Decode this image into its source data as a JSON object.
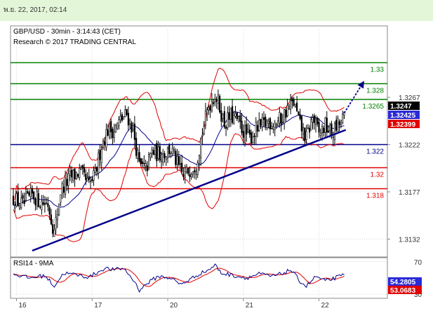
{
  "timestamp": "พ.ย. 22, 2017, 02:14",
  "chart_data": [
    {
      "type": "candlestick",
      "title": "GBP/USD - 30min - 3:14:43 (CET)",
      "subtitle": "Research © 2017 TRADING CENTRAL",
      "ylim": [
        1.3115,
        1.3335
      ],
      "y_ticks": [
        {
          "value": 1.3267,
          "label": "1.3267"
        },
        {
          "value": 1.3222,
          "label": "1.3222"
        },
        {
          "value": 1.3177,
          "label": "1.3177"
        },
        {
          "value": 1.3132,
          "label": "1.3132"
        }
      ],
      "x_labels": [
        {
          "index": 2,
          "label": "16"
        },
        {
          "index": 50,
          "label": "17"
        },
        {
          "index": 98,
          "label": "20"
        },
        {
          "index": 146,
          "label": "21"
        },
        {
          "index": 194,
          "label": "22"
        }
      ],
      "n_bars": 211,
      "levels": [
        {
          "value": 1.33,
          "label": "1.33",
          "color": "#008000"
        },
        {
          "value": 1.328,
          "label": "1.328",
          "color": "#008000"
        },
        {
          "value": 1.3265,
          "label": "1.3265",
          "color": "#008000"
        },
        {
          "value": 1.3222,
          "label": "1.322",
          "color": "#00008b"
        },
        {
          "value": 1.32,
          "label": "1.32",
          "color": "#e00000"
        },
        {
          "value": 1.318,
          "label": "1.318",
          "color": "#e00000"
        }
      ],
      "trendline": {
        "start": {
          "index": 12,
          "value": 1.3121
        },
        "end": {
          "index": 211,
          "value": 1.3236
        },
        "color": "#00008b"
      },
      "arrow": {
        "start": {
          "index": 210,
          "value": 1.3252
        },
        "end": {
          "index": 222,
          "value": 1.3281
        },
        "color": "#00008b"
      },
      "price_tags": [
        {
          "value": 1.3247,
          "label": "1.3247",
          "color": "#000000"
        },
        {
          "value": 1.32425,
          "label": "1.32425",
          "color": "#2a2ad8"
        },
        {
          "value": 1.32399,
          "label": "1.32399",
          "color": "#e00000"
        }
      ],
      "series": [
        {
          "name": "price",
          "color": "#000000",
          "anchors": [
            [
              0,
              1.3171
            ],
            [
              6,
              1.3164
            ],
            [
              12,
              1.3174
            ],
            [
              18,
              1.3167
            ],
            [
              22,
              1.3166
            ],
            [
              26,
              1.3138
            ],
            [
              30,
              1.3178
            ],
            [
              36,
              1.319
            ],
            [
              42,
              1.3196
            ],
            [
              48,
              1.3183
            ],
            [
              52,
              1.3193
            ],
            [
              56,
              1.3222
            ],
            [
              60,
              1.3236
            ],
            [
              64,
              1.3236
            ],
            [
              68,
              1.3245
            ],
            [
              72,
              1.3251
            ],
            [
              76,
              1.3236
            ],
            [
              80,
              1.3202
            ],
            [
              84,
              1.3198
            ],
            [
              88,
              1.3215
            ],
            [
              92,
              1.3213
            ],
            [
              96,
              1.3214
            ],
            [
              100,
              1.3218
            ],
            [
              104,
              1.3203
            ],
            [
              108,
              1.3191
            ],
            [
              112,
              1.3199
            ],
            [
              116,
              1.3204
            ],
            [
              120,
              1.3234
            ],
            [
              124,
              1.3259
            ],
            [
              128,
              1.327
            ],
            [
              130,
              1.3262
            ],
            [
              134,
              1.3242
            ],
            [
              138,
              1.3249
            ],
            [
              142,
              1.3245
            ],
            [
              146,
              1.3235
            ],
            [
              150,
              1.3228
            ],
            [
              154,
              1.3236
            ],
            [
              158,
              1.324
            ],
            [
              162,
              1.3244
            ],
            [
              166,
              1.3243
            ],
            [
              170,
              1.3246
            ],
            [
              174,
              1.3256
            ],
            [
              178,
              1.3262
            ],
            [
              182,
              1.324
            ],
            [
              186,
              1.3228
            ],
            [
              190,
              1.3248
            ],
            [
              194,
              1.3232
            ],
            [
              198,
              1.324
            ],
            [
              202,
              1.3232
            ],
            [
              206,
              1.324
            ],
            [
              210,
              1.3247
            ]
          ]
        },
        {
          "name": "MA",
          "color": "#00008b"
        },
        {
          "name": "Bollinger",
          "color": "#e00000"
        }
      ]
    },
    {
      "type": "line",
      "title": "RSI14 - 9MA",
      "ylim": [
        25,
        75
      ],
      "y_ticks": [
        {
          "value": 70,
          "label": "70"
        },
        {
          "value": 30,
          "label": "30"
        }
      ],
      "rsi_tags": [
        {
          "value": 54.2805,
          "label": "54.2805",
          "color": "#2a2ad8"
        },
        {
          "value": 53.0683,
          "label": "53.0683",
          "color": "#e00000"
        }
      ],
      "series": [
        {
          "name": "RSI14",
          "color": "#00008b",
          "anchors": [
            [
              0,
              55
            ],
            [
              10,
              50
            ],
            [
              20,
              53
            ],
            [
              26,
              40
            ],
            [
              32,
              56
            ],
            [
              40,
              54
            ],
            [
              48,
              51
            ],
            [
              58,
              62
            ],
            [
              64,
              60
            ],
            [
              70,
              62
            ],
            [
              76,
              48
            ],
            [
              80,
              35
            ],
            [
              86,
              45
            ],
            [
              92,
              52
            ],
            [
              100,
              50
            ],
            [
              106,
              42
            ],
            [
              112,
              48
            ],
            [
              118,
              55
            ],
            [
              124,
              60
            ],
            [
              128,
              66
            ],
            [
              132,
              56
            ],
            [
              140,
              53
            ],
            [
              148,
              50
            ],
            [
              156,
              55
            ],
            [
              164,
              52
            ],
            [
              170,
              55
            ],
            [
              176,
              60
            ],
            [
              182,
              46
            ],
            [
              186,
              40
            ],
            [
              192,
              52
            ],
            [
              198,
              46
            ],
            [
              204,
              50
            ],
            [
              211,
              54.28
            ]
          ]
        },
        {
          "name": "9MA",
          "color": "#e00000"
        }
      ]
    }
  ]
}
